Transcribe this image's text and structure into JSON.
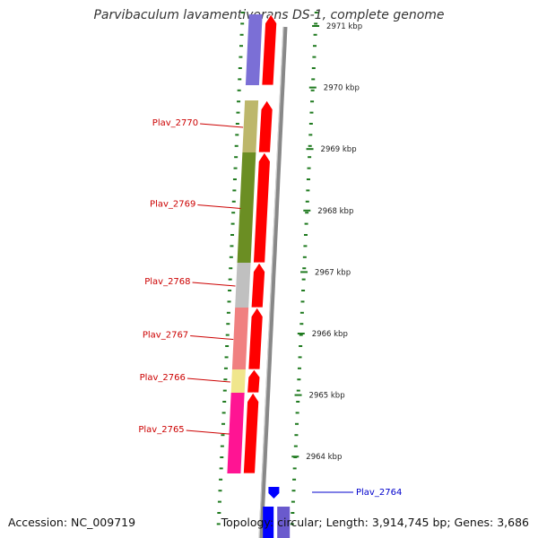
{
  "title": "Parvibaculum lavamentivorans DS-1, complete genome",
  "footer": {
    "accession": "Accession: NC_009719",
    "summary": "Topology: circular; Length: 3,914,745 bp; Genes: 3,686"
  },
  "colors": {
    "backbone": "#888888",
    "tick": "#1f7a1f",
    "label_red": "#cc0000",
    "label_blue": "#0000cc",
    "cds_red": "#ff0000",
    "cds_blue": "#0000ff"
  },
  "chart_data": {
    "type": "genome-map",
    "ticks": [
      {
        "label": "2971 kbp"
      },
      {
        "label": "2970 kbp"
      },
      {
        "label": "2969 kbp"
      },
      {
        "label": "2968 kbp"
      },
      {
        "label": "2967 kbp"
      },
      {
        "label": "2966 kbp"
      },
      {
        "label": "2965 kbp"
      },
      {
        "label": "2964 kbp"
      }
    ],
    "genes": [
      {
        "name": "",
        "color": "#7b6fd6",
        "strand": "reverse"
      },
      {
        "name": "Plav_2770",
        "color": "#bdb76b",
        "strand": "reverse"
      },
      {
        "name": "Plav_2769",
        "color": "#6b8e23",
        "strand": "reverse"
      },
      {
        "name": "Plav_2768",
        "color": "#c0c0c0",
        "strand": "reverse"
      },
      {
        "name": "Plav_2767",
        "color": "#f08080",
        "strand": "reverse"
      },
      {
        "name": "Plav_2766",
        "color": "#f0e68c",
        "strand": "reverse"
      },
      {
        "name": "Plav_2765",
        "color": "#ff1493",
        "strand": "reverse"
      },
      {
        "name": "Plav_2764",
        "color": "#0000ff",
        "strand": "forward"
      }
    ]
  }
}
